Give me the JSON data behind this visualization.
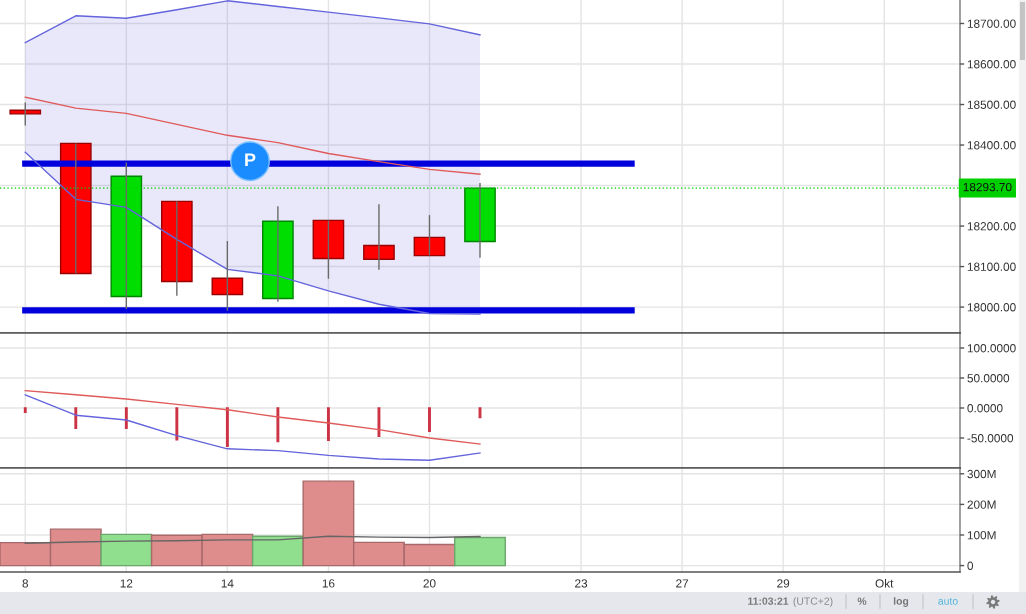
{
  "chart_data": [
    {
      "type": "candlestick",
      "categories": [
        null,
        null,
        null,
        null,
        null,
        null,
        null,
        null,
        null,
        null,
        null,
        null,
        null,
        null,
        null,
        null,
        null,
        null,
        null
      ],
      "ohlc": [
        [
          18486,
          18505,
          18448,
          18477
        ],
        [
          18404,
          18404,
          18083,
          18083
        ],
        [
          18026,
          18357,
          17995,
          18323
        ],
        [
          18261,
          18261,
          18028,
          18063
        ],
        [
          18071,
          18163,
          17991,
          18031
        ],
        [
          18021,
          18249,
          18013,
          18212
        ],
        [
          18214,
          18214,
          18070,
          18120
        ],
        [
          18152,
          18254,
          18092,
          18118
        ],
        [
          18172,
          18227,
          18127,
          18127
        ],
        [
          18162,
          18306,
          18122,
          18293.7
        ],
        null,
        null,
        null,
        null,
        null,
        null,
        null,
        null,
        null
      ],
      "colors": [
        "#ff0000",
        "#ff0000",
        "#00dd00",
        "#ff0000",
        "#ff0000",
        "#00dd00",
        "#ff0000",
        "#ff0000",
        "#ff0000",
        "#00dd00",
        null,
        null,
        null,
        null,
        null,
        null,
        null,
        null,
        null
      ],
      "series": [
        {
          "type": "line",
          "color": "#6464dc",
          "values": [
            18653,
            18719,
            18713,
            18734,
            18756,
            18742,
            18728,
            18714,
            18699,
            18672,
            null,
            null,
            null,
            null,
            null,
            null,
            null,
            null,
            null
          ],
          "lower": [
            18382,
            18266,
            18246,
            18167,
            18093,
            18077,
            18040,
            18007,
            17984,
            17983,
            null,
            null,
            null,
            null,
            null,
            null,
            null,
            null,
            null
          ],
          "upper": [
            18653,
            18719,
            18713,
            18734,
            18756,
            18742,
            18728,
            18714,
            18699,
            18672,
            null,
            null,
            null,
            null,
            null,
            null,
            null,
            null,
            null
          ]
        },
        {
          "type": "line",
          "color": "#6464dc",
          "values": [
            18382,
            18266,
            18246,
            18167,
            18093,
            18077,
            18040,
            18007,
            17984,
            17983,
            null,
            null,
            null,
            null,
            null,
            null,
            null,
            null,
            null
          ]
        },
        {
          "type": "line",
          "color": "#e05a5a",
          "values": [
            18518,
            18491,
            18478,
            18451,
            18424,
            18406,
            18379,
            18359,
            18340,
            18328,
            null,
            null,
            null,
            null,
            null,
            null,
            null,
            null,
            null
          ]
        },
        {
          "type": "line",
          "color": "#0000dd",
          "values": [
            18354,
            18354,
            18354,
            18354,
            18354,
            18354,
            18354,
            18354,
            18354,
            18354,
            18354,
            18354,
            18354,
            null,
            null,
            null,
            null,
            null,
            null
          ]
        },
        {
          "type": "line",
          "color": "#0000dd",
          "values": [
            17992,
            17992,
            17992,
            17992,
            17992,
            17992,
            17992,
            17992,
            17992,
            17992,
            17992,
            17992,
            17992,
            null,
            null,
            null,
            null,
            null,
            null
          ]
        }
      ],
      "ylim": [
        17936,
        18758
      ],
      "yticks": [
        {
          "value": 18000,
          "label": "18000.00"
        },
        {
          "value": 18100,
          "label": "18100.00"
        },
        {
          "value": 18200,
          "label": "18200.00"
        },
        {
          "value": 18300,
          "label": null
        },
        {
          "value": 18400,
          "label": "18400.00"
        },
        {
          "value": 18500,
          "label": "18500.00"
        },
        {
          "value": 18600,
          "label": "18600.00"
        },
        {
          "value": 18700,
          "label": "18700.00"
        }
      ],
      "ref_lines": [
        {
          "axis": "y",
          "value": 18293.7,
          "label": "18293.70",
          "color": "#00d000",
          "line_style": "dotted"
        }
      ],
      "annotations": [
        {
          "text": "P",
          "y": 18360
        }
      ],
      "grid": true
    },
    {
      "type": "line",
      "categories": [
        null,
        null,
        null,
        null,
        null,
        null,
        null,
        null,
        null,
        null,
        null,
        null,
        null,
        null,
        null,
        null,
        null,
        null,
        null
      ],
      "series": [
        {
          "type": "bar",
          "color": "#cc3344",
          "values": [
            -7,
            -34,
            -34,
            -53,
            -64,
            -56,
            -54,
            -47,
            -39,
            -16,
            null,
            null,
            null,
            null,
            null,
            null,
            null,
            null,
            null
          ]
        },
        {
          "type": "line",
          "color": "#6464dc",
          "values": [
            22,
            -12,
            -20,
            -46,
            -68,
            -71,
            -79,
            -85,
            -87,
            -75,
            null,
            null,
            null,
            null,
            null,
            null,
            null,
            null,
            null
          ]
        },
        {
          "type": "line",
          "color": "#e05a5a",
          "values": [
            29,
            22,
            15,
            6,
            -3,
            -15,
            -25,
            -36,
            -50,
            -60,
            null,
            null,
            null,
            null,
            null,
            null,
            null,
            null,
            null
          ]
        }
      ],
      "ylim": [
        -100,
        125
      ],
      "yticks": [
        {
          "value": -50,
          "label": "-50.0000"
        },
        {
          "value": 0,
          "label": "0.0000"
        },
        {
          "value": 50,
          "label": "50.0000"
        },
        {
          "value": 100,
          "label": "100.0000"
        }
      ],
      "grid": true
    },
    {
      "type": "bar",
      "categories": [
        "8",
        null,
        "12",
        null,
        "14",
        null,
        "16",
        null,
        "20",
        null,
        null,
        "23",
        null,
        "27",
        null,
        "29",
        null,
        "Okt",
        null
      ],
      "series": [
        {
          "type": "bar",
          "values": [
            75,
            119,
            102,
            99,
            102,
            96,
            276,
            76,
            69,
            92,
            null,
            null,
            null,
            null,
            null,
            null,
            null,
            null,
            null
          ],
          "colors": [
            "#df8c8c",
            "#df8c8c",
            "#8fdf8f",
            "#df8c8c",
            "#df8c8c",
            "#8fdf8f",
            "#df8c8c",
            "#df8c8c",
            "#df8c8c",
            "#8fdf8f",
            null,
            null,
            null,
            null,
            null,
            null,
            null,
            null,
            null
          ]
        },
        {
          "type": "line",
          "color": "#666666",
          "values": [
            73,
            77,
            80,
            81,
            84,
            84,
            96,
            93,
            92,
            95,
            null,
            null,
            null,
            null,
            null,
            null,
            null,
            null,
            null
          ]
        }
      ],
      "ylim": [
        -21,
        319
      ],
      "yticks": [
        0,
        {
          "value": 100,
          "label": "100M"
        },
        {
          "value": 200,
          "label": "200M"
        },
        {
          "value": 300,
          "label": "300M"
        }
      ],
      "grid": true,
      "annotations": [
        "11:03:21",
        "(UTC+2)",
        "%",
        "log",
        "auto"
      ]
    }
  ]
}
